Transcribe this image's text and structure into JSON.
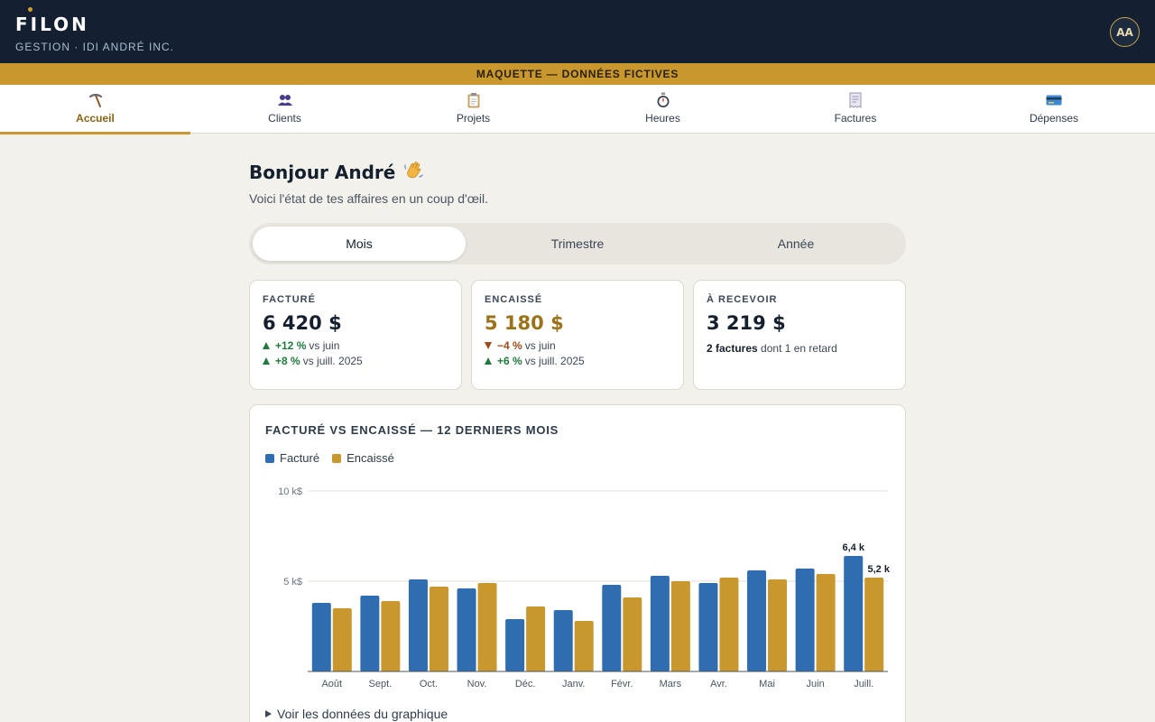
{
  "header": {
    "logo_text": "FILON",
    "subtitle": "GESTION · IDI ANDRÉ INC.",
    "avatar_initials": "AA"
  },
  "banner": {
    "text": "MAQUETTE — DONNÉES FICTIVES"
  },
  "nav": {
    "items": [
      {
        "label": "Accueil",
        "icon": "pick-icon",
        "active": true
      },
      {
        "label": "Clients",
        "icon": "people-icon",
        "active": false
      },
      {
        "label": "Projets",
        "icon": "clipboard-icon",
        "active": false
      },
      {
        "label": "Heures",
        "icon": "stopwatch-icon",
        "active": false
      },
      {
        "label": "Factures",
        "icon": "receipt-icon",
        "active": false
      },
      {
        "label": "Dépenses",
        "icon": "credit-card-icon",
        "active": false
      }
    ]
  },
  "greeting": {
    "title": "Bonjour André",
    "emoji": "wave-hand-icon",
    "subtitle": "Voici l'état de tes affaires en un coup d'œil."
  },
  "period": {
    "options": [
      "Mois",
      "Trimestre",
      "Année"
    ],
    "selected": "Mois"
  },
  "cards": {
    "invoiced": {
      "label": "FACTURÉ",
      "value": "6 420 $",
      "trend1_value": "+12 %",
      "trend1_text": "vs juin",
      "trend2_value": "+8 %",
      "trend2_text": "vs juill. 2025"
    },
    "collected": {
      "label": "ENCAISSÉ",
      "value": "5 180 $",
      "trend1_value": "−4 %",
      "trend1_text": "vs juin",
      "trend2_value": "+6 %",
      "trend2_text": "vs juill. 2025"
    },
    "receivable": {
      "label": "À RECEVOIR",
      "value": "3 219 $",
      "note_bold": "2 factures",
      "note_rest": "dont 1 en retard"
    }
  },
  "chart": {
    "title": "FACTURÉ VS ENCAISSÉ — 12 DERNIERS MOIS",
    "toggle_label": "Voir les données du graphique"
  },
  "chart_data": {
    "type": "bar",
    "categories": [
      "Août",
      "Sept.",
      "Oct.",
      "Nov.",
      "Déc.",
      "Janv.",
      "Févr.",
      "Mars",
      "Avr.",
      "Mai",
      "Juin",
      "Juill."
    ],
    "series": [
      {
        "name": "Facturé",
        "color": "#2f6db0",
        "values": [
          3.8,
          4.2,
          5.1,
          4.6,
          2.9,
          3.4,
          4.8,
          5.3,
          4.9,
          5.6,
          5.7,
          6.4
        ]
      },
      {
        "name": "Encaissé",
        "color": "#c8972e",
        "values": [
          3.5,
          3.9,
          4.7,
          4.9,
          3.6,
          2.8,
          4.1,
          5.0,
          5.2,
          5.1,
          5.4,
          5.2
        ]
      }
    ],
    "y_ticks": [
      "5 k$",
      "10 k$"
    ],
    "y_tick_values": [
      5,
      10
    ],
    "ylim": [
      0,
      10
    ],
    "data_labels": {
      "last_facture": "6,4 k",
      "last_encaisse": "5,2 k"
    },
    "grid": true,
    "legend": "top-left"
  }
}
